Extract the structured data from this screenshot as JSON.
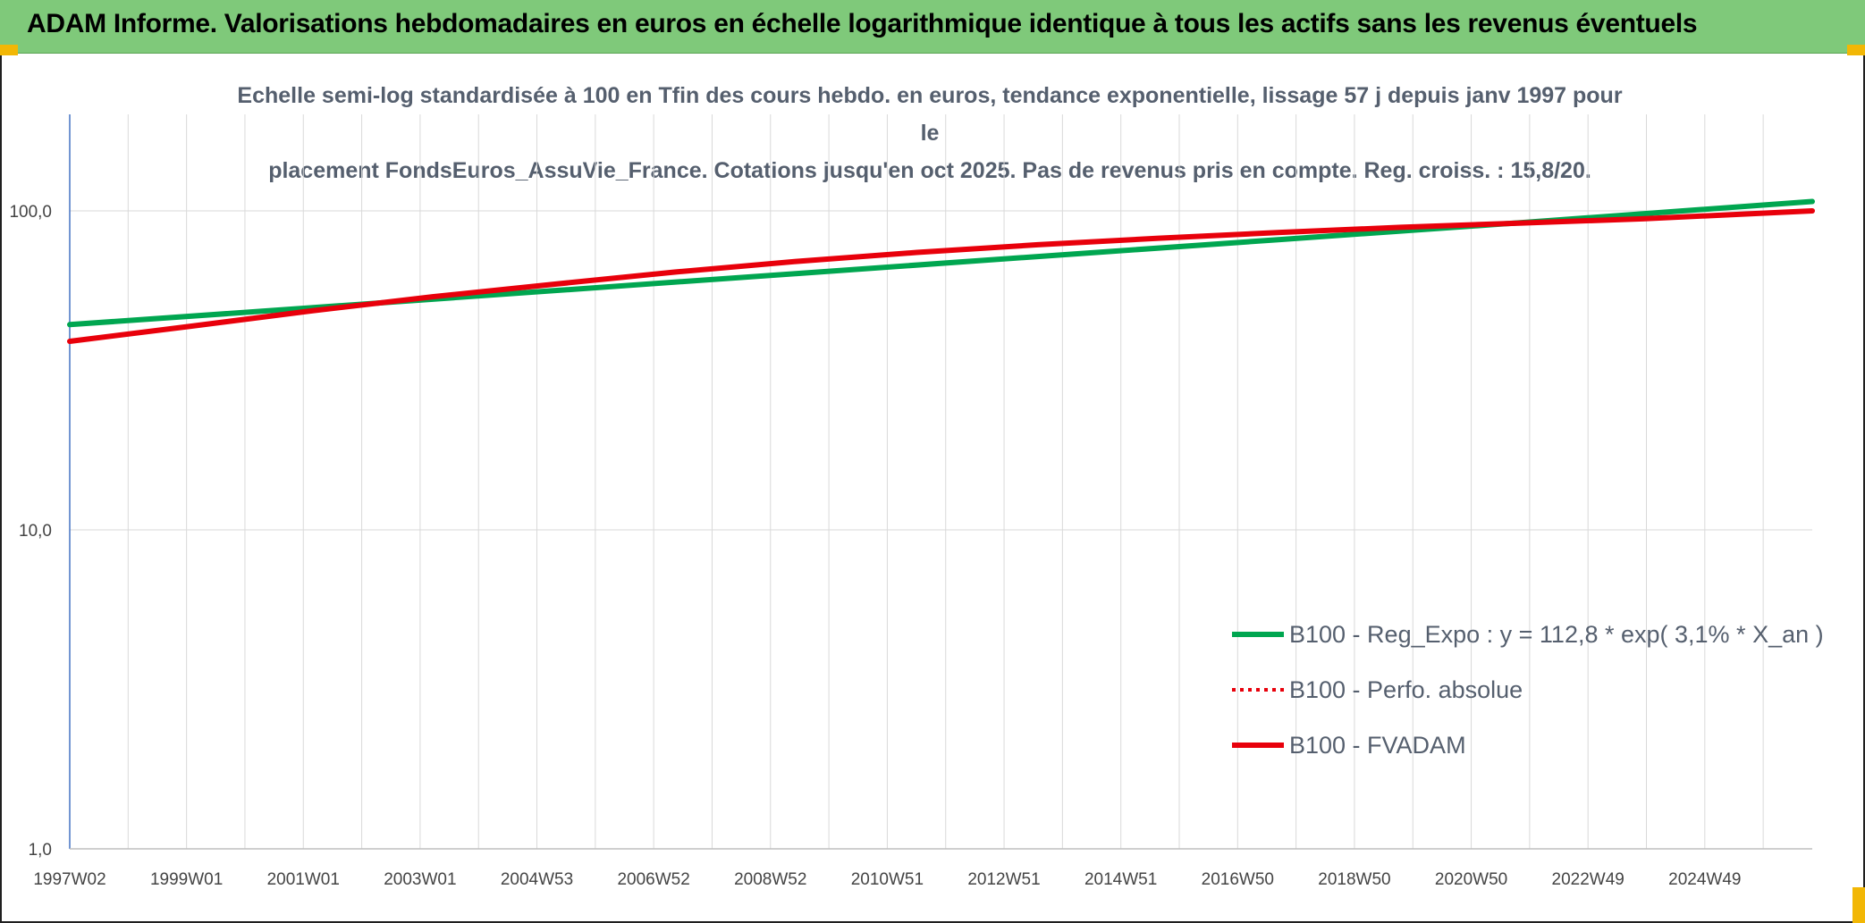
{
  "header": {
    "title": "ADAM Informe. Valorisations hebdomadaires en euros en échelle logarithmique identique à tous les actifs sans les revenus éventuels"
  },
  "colors": {
    "banner": "#7fc97a",
    "accent": "#f2b705",
    "reg_expo": "#00a650",
    "fvadam": "#e8000b"
  },
  "chart_data": {
    "type": "line",
    "title_lines": [
      "Echelle semi-log standardisée à 100 en Tfin des cours hebdo. en euros, tendance exponentielle, lissage 57 j depuis janv 1997 pour le",
      "placement FondsEuros_AssuVie_France. Cotations jusqu'en oct 2025. Pas de revenus pris en compte. Reg. croiss. : 15,8/20."
    ],
    "y_scale": "log",
    "ylim": [
      1,
      100
    ],
    "y_ticks": [
      {
        "value": 1,
        "label": "1,0"
      },
      {
        "value": 10,
        "label": "10,0"
      },
      {
        "value": 100,
        "label": "100,0"
      }
    ],
    "x_tick_labels": [
      "1997W02",
      "1999W01",
      "2001W01",
      "2003W01",
      "2004W53",
      "2006W52",
      "2008W52",
      "2010W51",
      "2012W51",
      "2014W51",
      "2016W50",
      "2018W50",
      "2020W50",
      "2022W49",
      "2024W49"
    ],
    "x_range": [
      1997.0,
      2025.8
    ],
    "grid": true,
    "legend_position": "bottom-right",
    "series": [
      {
        "name": "B100 - Reg_Expo : y = 112,8 * exp( 3,1% *  X_an )",
        "color": "#00a650",
        "style": "solid",
        "x": [
          1997.0,
          2001.0,
          2005.0,
          2009.0,
          2013.0,
          2017.0,
          2021.0,
          2025.8
        ],
        "y": [
          44.0,
          49.7,
          56.2,
          63.6,
          71.9,
          81.3,
          91.9,
          107.0
        ]
      },
      {
        "name": "B100 - Perfo. absolue",
        "color": "#e8000b",
        "style": "dotted",
        "x": [
          1997.0,
          1999.0,
          2001.0,
          2003.0,
          2005.0,
          2007.0,
          2009.0,
          2011.0,
          2013.0,
          2015.0,
          2017.0,
          2019.0,
          2021.0,
          2023.0,
          2025.8
        ],
        "y": [
          39.0,
          43.5,
          48.6,
          53.8,
          58.9,
          64.3,
          69.4,
          74.1,
          78.3,
          82.1,
          85.6,
          88.8,
          91.6,
          94.4,
          100.0
        ]
      },
      {
        "name": "B100 - FVADAM",
        "color": "#e8000b",
        "style": "solid",
        "x": [
          1997.0,
          1999.0,
          2001.0,
          2003.0,
          2005.0,
          2007.0,
          2009.0,
          2011.0,
          2013.0,
          2015.0,
          2017.0,
          2019.0,
          2021.0,
          2023.0,
          2025.8
        ],
        "y": [
          39.0,
          43.5,
          48.6,
          53.8,
          58.9,
          64.3,
          69.4,
          74.1,
          78.3,
          82.1,
          85.6,
          88.8,
          91.6,
          94.4,
          100.0
        ]
      }
    ]
  }
}
